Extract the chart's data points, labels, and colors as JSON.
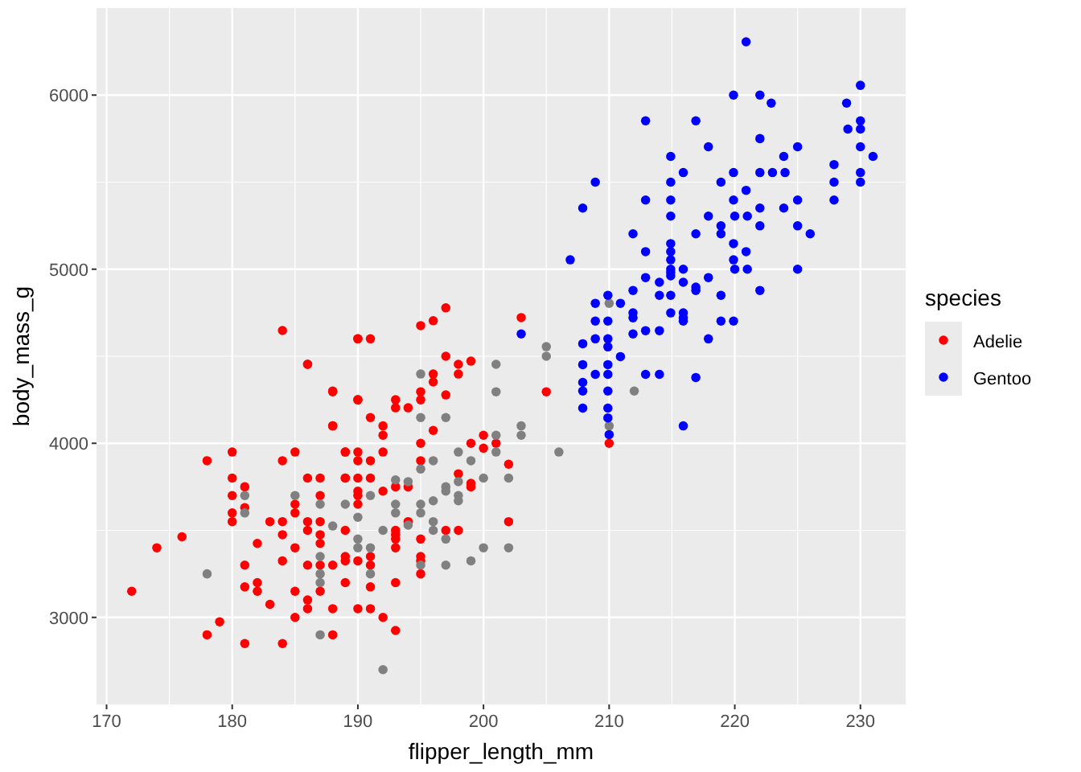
{
  "chart_data": {
    "type": "scatter",
    "xlabel": "flipper_length_mm",
    "ylabel": "body_mass_g",
    "legend_title": "species",
    "xlim": [
      169.2,
      233.6
    ],
    "ylim": [
      2500,
      6500
    ],
    "xticks": [
      170,
      180,
      190,
      200,
      210,
      220,
      230
    ],
    "yticks": [
      3000,
      4000,
      5000,
      6000
    ],
    "grid": true,
    "legend": "right",
    "marker": "circle",
    "series": [
      {
        "name": "Adelie",
        "color": "#ff0000",
        "x": [
          184,
          190,
          186,
          188,
          190,
          188,
          180,
          185,
          189,
          190,
          178,
          184,
          190,
          180,
          186,
          187,
          189,
          190,
          181,
          180,
          187,
          190,
          190,
          181,
          185,
          185,
          190,
          180,
          180,
          183,
          184,
          186,
          187,
          186,
          189,
          176,
          184,
          187,
          182,
          174,
          185,
          187,
          189,
          189,
          190,
          184,
          181,
          186,
          187,
          188,
          182,
          189,
          181,
          182,
          185,
          187,
          172,
          183,
          186,
          186,
          188,
          190,
          185,
          179,
          178,
          188,
          181,
          184,
          197,
          203,
          196,
          195,
          190,
          191,
          186,
          197,
          198,
          199,
          196,
          196,
          198,
          188,
          190,
          195,
          195,
          193,
          193,
          194,
          197,
          205,
          191,
          192,
          192,
          188,
          196,
          189,
          192,
          195,
          199,
          200,
          200,
          201,
          202,
          191,
          195,
          189,
          191,
          198,
          199,
          199,
          192,
          193,
          194,
          193,
          193,
          193,
          194,
          197,
          198,
          202,
          195,
          193,
          191,
          195,
          195,
          191,
          195,
          191,
          193,
          191,
          192,
          193,
          210
        ],
        "values": [
          4648,
          4600,
          4454,
          4300,
          4250,
          4100,
          3950,
          3950,
          3950,
          3950,
          3900,
          3900,
          3900,
          3800,
          3800,
          3800,
          3800,
          3800,
          3750,
          3700,
          3700,
          3725,
          3700,
          3630,
          3650,
          3600,
          3650,
          3600,
          3550,
          3550,
          3550,
          3550,
          3550,
          3500,
          3500,
          3463,
          3475,
          3475,
          3425,
          3400,
          3400,
          3425,
          3350,
          3325,
          3325,
          3325,
          3300,
          3300,
          3300,
          3300,
          3200,
          3200,
          3175,
          3150,
          3150,
          3150,
          3150,
          3075,
          3100,
          3050,
          3050,
          3050,
          3000,
          2975,
          2900,
          2900,
          2850,
          2850,
          4778,
          4722,
          4704,
          4676,
          4600,
          4600,
          4454,
          4500,
          4454,
          4472,
          4398,
          4352,
          4398,
          4296,
          4250,
          4296,
          4250,
          4250,
          4204,
          4204,
          4278,
          4296,
          4148,
          4100,
          4046,
          4100,
          4074,
          3950,
          3950,
          4000,
          4000,
          3972,
          4046,
          4000,
          3880,
          3900,
          3900,
          3800,
          3800,
          3825,
          3770,
          3750,
          3725,
          3750,
          3750,
          3500,
          3475,
          3450,
          3550,
          3500,
          3500,
          3550,
          3450,
          3400,
          3350,
          3350,
          3325,
          3300,
          3250,
          3175,
          3200,
          3050,
          3000,
          2925,
          4000
        ]
      },
      {
        "color": "#808080",
        "x": [
          181,
          185,
          187,
          189,
          181,
          190,
          188,
          190,
          190,
          187,
          178,
          187,
          187,
          187,
          205,
          205,
          201,
          201,
          195,
          195,
          197,
          203,
          203,
          201,
          201,
          198,
          206,
          196,
          199,
          195,
          193,
          194,
          198,
          200,
          202,
          197,
          197,
          198,
          198,
          196,
          191,
          193,
          193,
          195,
          195,
          192,
          194,
          196,
          196,
          197,
          200,
          202,
          191,
          199,
          197,
          195,
          191,
          192,
          210,
          212,
          210
        ],
        "values": [
          3700,
          3700,
          3650,
          3650,
          3600,
          3575,
          3525,
          3450,
          3400,
          3350,
          3250,
          3250,
          3200,
          2900,
          4555,
          4500,
          4454,
          4296,
          4398,
          4148,
          4148,
          4100,
          4046,
          4046,
          3950,
          3950,
          3950,
          3900,
          3900,
          3852,
          3790,
          3780,
          3780,
          3800,
          3800,
          3750,
          3725,
          3700,
          3670,
          3670,
          3700,
          3650,
          3600,
          3650,
          3600,
          3500,
          3530,
          3550,
          3500,
          3450,
          3400,
          3400,
          3400,
          3325,
          3300,
          3300,
          3250,
          2700,
          4804,
          4300,
          4100
        ]
      },
      {
        "name": "Gentoo",
        "color": "#0000ff",
        "x": [
          220.9,
          219.9,
          222,
          222.9,
          230,
          228.9,
          230,
          230,
          229,
          230,
          231,
          212.9,
          216.9,
          222,
          217.9,
          225,
          223.9,
          214.9,
          215.9,
          219.9,
          222,
          223,
          224,
          227.9,
          230,
          230,
          227.9,
          208.9,
          214.9,
          218.9,
          220.9,
          207.9,
          212.9,
          214.9,
          219.9,
          225,
          227.9,
          214.9,
          217.9,
          220,
          221,
          222,
          223.9,
          218.9,
          218.9,
          222,
          225,
          226,
          211.9,
          216.9,
          206.9,
          212.9,
          214.9,
          214.9,
          214.9,
          219.9,
          220.9,
          219.9,
          214.9,
          214.9,
          214.9,
          215.9,
          220,
          221,
          225,
          212.9,
          214,
          215.9,
          217.9,
          216.9,
          216.9,
          211.9,
          222,
          209.9,
          214,
          214.9,
          218.9,
          208.9,
          210.9,
          211.9,
          211.9,
          214.9,
          215.9,
          215.9,
          215.9,
          218.9,
          219.9,
          208.9,
          209.9,
          203,
          211.9,
          212.9,
          214,
          207.9,
          208.9,
          209.9,
          209.9,
          217.9,
          210.9,
          207.9,
          209.9,
          208.9,
          209.9,
          212.9,
          214,
          216.9,
          207.9,
          207.9,
          209.9,
          207.9,
          209.9,
          209.9,
          215.9,
          210
        ],
        "values": [
          6306,
          6000,
          6000,
          5954,
          6056,
          5954,
          5852,
          5805,
          5805,
          5703,
          5648,
          5852,
          5852,
          5750,
          5703,
          5703,
          5648,
          5648,
          5555,
          5555,
          5555,
          5555,
          5555,
          5601,
          5555,
          5500,
          5500,
          5500,
          5500,
          5500,
          5453,
          5351,
          5397,
          5397,
          5397,
          5397,
          5397,
          5305,
          5305,
          5305,
          5305,
          5351,
          5351,
          5249,
          5203,
          5249,
          5249,
          5203,
          5203,
          5203,
          5054,
          5101,
          5147,
          5101,
          5054,
          5147,
          5101,
          5054,
          5000,
          4981,
          4962,
          5000,
          5000,
          5000,
          5000,
          4952,
          4925,
          4925,
          4952,
          4897,
          4878,
          4878,
          4878,
          4850,
          4850,
          4850,
          4850,
          4804,
          4804,
          4749,
          4721,
          4749,
          4749,
          4721,
          4702,
          4702,
          4702,
          4702,
          4702,
          4628,
          4628,
          4647,
          4647,
          4572,
          4600,
          4600,
          4554,
          4600,
          4498,
          4452,
          4452,
          4396,
          4396,
          4396,
          4396,
          4378,
          4350,
          4300,
          4300,
          4202,
          4202,
          4146,
          4100,
          4050
        ]
      }
    ]
  }
}
